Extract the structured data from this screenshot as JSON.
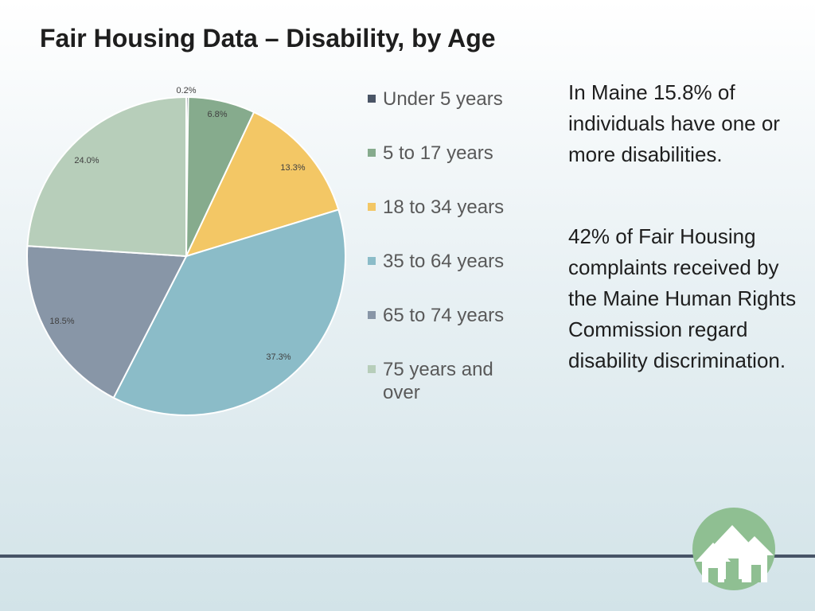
{
  "title": "Fair Housing Data – Disability, by Age",
  "chart_data": {
    "type": "pie",
    "categories": [
      "Under 5 years",
      "5 to 17 years",
      "18 to 34 years",
      "35 to 64 years",
      "65 to 74 years",
      "75 years and over"
    ],
    "values": [
      0.2,
      6.8,
      13.3,
      37.3,
      18.5,
      24.0
    ],
    "value_labels": [
      "0.2%",
      "6.8%",
      "13.3%",
      "37.3%",
      "18.5%",
      "24.0%"
    ],
    "colors": [
      "#4a5566",
      "#86ab8d",
      "#f3c765",
      "#8bbcc8",
      "#8896a7",
      "#b7ceba"
    ],
    "start_angle_deg": 0,
    "direction": "clockwise",
    "legend_position": "right"
  },
  "side_text": {
    "paragraph1": "In Maine 15.8% of individuals have one or more disabilities.",
    "paragraph2": "42% of Fair Housing complaints received by the Maine Human Rights Commission regard disability discrimination."
  },
  "logo": {
    "icon": "house-logo-icon",
    "colors": {
      "circle": "#8fbf92",
      "house": "#ffffff"
    }
  }
}
